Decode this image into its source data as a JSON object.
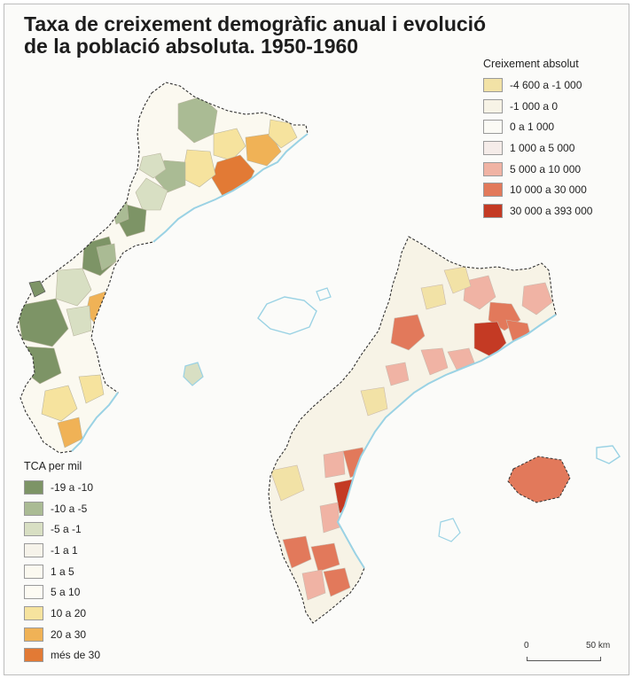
{
  "title": {
    "line1": "Taxa de creixement demogràfic anual i evolució",
    "line2": "de la població absoluta. 1950-1960"
  },
  "legend_absolute": {
    "title": "Creixement absolut",
    "items": [
      {
        "label": "-4 600 a -1 000",
        "color": "#f2e2a6"
      },
      {
        "label": "-1 000 a 0",
        "color": "#f7f3e6"
      },
      {
        "label": "0 a 1 000",
        "color": "#fbfaf5"
      },
      {
        "label": "1 000 a 5 000",
        "color": "#f5ece9"
      },
      {
        "label": "5 000 a 10 000",
        "color": "#f0b3a4"
      },
      {
        "label": "10 000 a 30 000",
        "color": "#e2795b"
      },
      {
        "label": "30 000 a 393 000",
        "color": "#c43a24"
      }
    ]
  },
  "legend_tca": {
    "title": "TCA per mil",
    "items": [
      {
        "label": "-19 a -10",
        "color": "#7d9466"
      },
      {
        "label": "-10 a -5",
        "color": "#aabb94"
      },
      {
        "label": "-5 a -1",
        "color": "#d8dfc3"
      },
      {
        "label": "-1 a 1",
        "color": "#f6f3ea"
      },
      {
        "label": "1 a 5",
        "color": "#fbf9f0"
      },
      {
        "label": "5 a 10",
        "color": "#fdfbf3"
      },
      {
        "label": "10 a 20",
        "color": "#f6e39e"
      },
      {
        "label": "20 a 30",
        "color": "#f0b256"
      },
      {
        "label": "més de 30",
        "color": "#e27a35"
      }
    ]
  },
  "scale": {
    "start": "0",
    "end": "50 km"
  },
  "colors": {
    "coast": "#9ad2e4",
    "border": "#333333",
    "sea": "#fbfbf9"
  }
}
